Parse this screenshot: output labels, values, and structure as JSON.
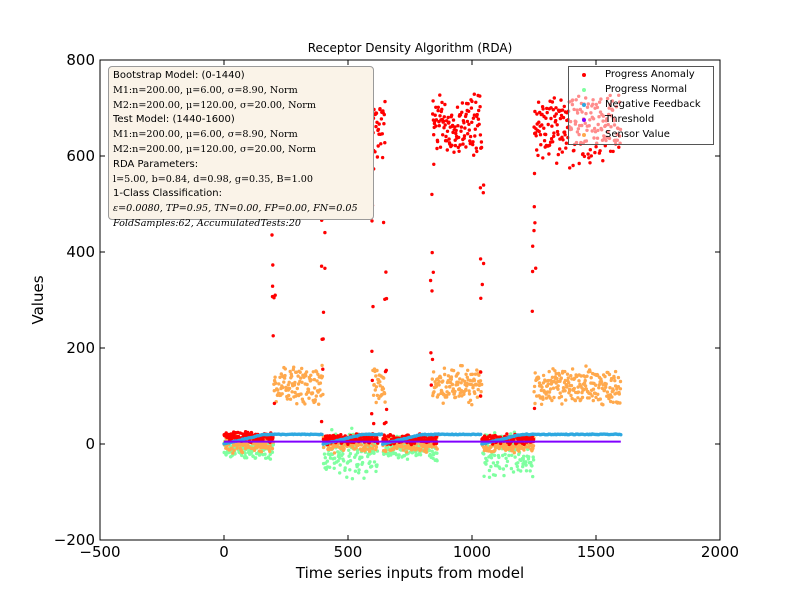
{
  "chart_data": {
    "type": "scatter",
    "title": "Receptor Density Algorithm (RDA)",
    "xlabel": "Time series inputs from model",
    "ylabel": "Values",
    "xlim": [
      -500,
      2000
    ],
    "ylim": [
      -200,
      800
    ],
    "xticks": [
      "−500",
      "0",
      "500",
      "1000",
      "1500",
      "2000"
    ],
    "yticks": [
      "−200",
      "0",
      "200",
      "400",
      "600",
      "800"
    ],
    "grid": false,
    "legend_position": "top-right",
    "series": [
      {
        "name": "Progress Anomaly",
        "color": "#ff0000",
        "segments": [
          {
            "x": [
              0,
              200
            ],
            "level": 15,
            "spread": 12
          },
          {
            "x": [
              190,
              400
            ],
            "level": 655,
            "spread": 85
          },
          {
            "x": [
              400,
              620
            ],
            "level": 10,
            "spread": 12
          },
          {
            "x": [
              600,
              650
            ],
            "level": 660,
            "spread": 70
          },
          {
            "x": [
              640,
              860
            ],
            "level": 10,
            "spread": 12
          },
          {
            "x": [
              840,
              1040
            ],
            "level": 665,
            "spread": 75
          },
          {
            "x": [
              1040,
              1250
            ],
            "level": 10,
            "spread": 12
          },
          {
            "x": [
              1250,
              1600
            ],
            "level": 655,
            "spread": 85
          }
        ]
      },
      {
        "name": "Progress Normal",
        "color": "#7fffa0",
        "segments": [
          {
            "x": [
              0,
              200
            ],
            "level": -10,
            "spread": 25
          },
          {
            "x": [
              400,
              620
            ],
            "level": -20,
            "spread": 55
          },
          {
            "x": [
              640,
              860
            ],
            "level": -10,
            "spread": 30
          },
          {
            "x": [
              1040,
              1250
            ],
            "level": -20,
            "spread": 55
          }
        ]
      },
      {
        "name": "Negative Feedback",
        "color": "#ffa94d",
        "segments": [
          {
            "x": [
              0,
              200
            ],
            "level": 0,
            "spread": 20
          },
          {
            "x": [
              200,
              400
            ],
            "level": 122,
            "spread": 45
          },
          {
            "x": [
              400,
              620
            ],
            "level": 0,
            "spread": 20
          },
          {
            "x": [
              600,
              650
            ],
            "level": 122,
            "spread": 45
          },
          {
            "x": [
              640,
              860
            ],
            "level": 0,
            "spread": 20
          },
          {
            "x": [
              840,
              1040
            ],
            "level": 122,
            "spread": 45
          },
          {
            "x": [
              1040,
              1250
            ],
            "level": 0,
            "spread": 20
          },
          {
            "x": [
              1250,
              1600
            ],
            "level": 122,
            "spread": 45
          }
        ]
      },
      {
        "name": "Threshold",
        "color": "#8000ff",
        "x": [
          0,
          1600
        ],
        "value": 5
      },
      {
        "name": "Sensor Value",
        "color": "#2ea8e0",
        "x": [
          0,
          1600
        ],
        "max": 20
      }
    ]
  },
  "info": {
    "lines": [
      "Bootstrap Model: (0-1440)",
      "M1:n=200.00, μ=6.00, σ=8.90, Norm",
      "M2:n=200.00, μ=120.00, σ=20.00, Norm",
      "Test Model: (1440-1600)",
      "M1:n=200.00, μ=6.00, σ=8.90, Norm",
      "M2:n=200.00, μ=120.00, σ=20.00, Norm",
      "RDA Parameters:",
      "l=5.00, b=0.84, d=0.98, g=0.35, B=1.00",
      "1-Class Classification:",
      "ε=0.0080, TP=0.95, TN=0.00, FP=0.00, FN=0.05",
      "FoldSamples:62, AccumulatedTests:20"
    ]
  }
}
